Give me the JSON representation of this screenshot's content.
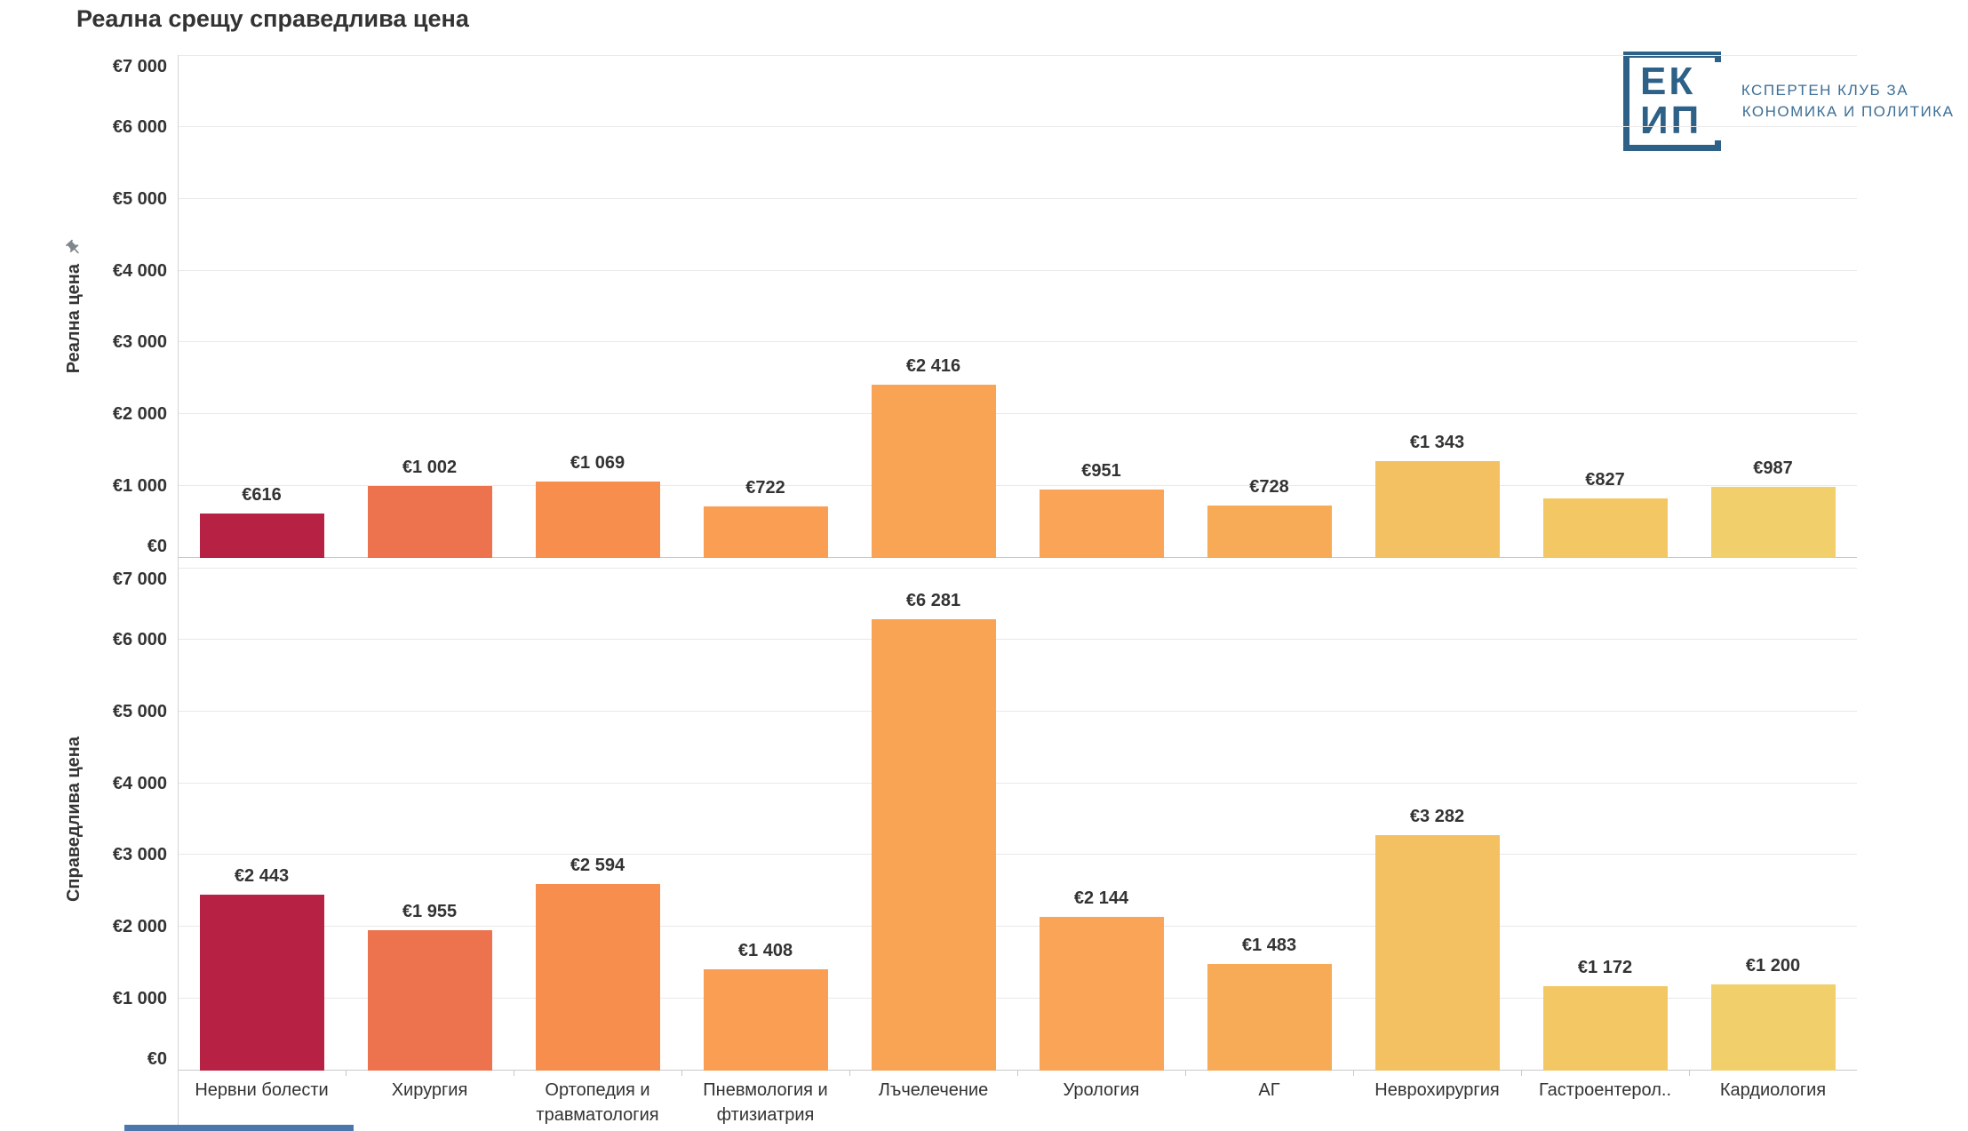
{
  "chart_data": {
    "type": "bar",
    "title": "Реална срещу справедлива цена",
    "categories": [
      "Нервни болести",
      "Хирургия",
      "Ортопедия и\nтравматология",
      "Пневмология и\nфтизиатрия",
      "Лъчелечение",
      "Урология",
      "АГ",
      "Неврохирургия",
      "Гастроентерол..",
      "Кардиология"
    ],
    "series": [
      {
        "name": "Реална цена",
        "values": [
          616,
          1002,
          1069,
          722,
          2416,
          951,
          728,
          1343,
          827,
          987
        ],
        "labels": [
          "€616",
          "€1 002",
          "€1 069",
          "€722",
          "€2 416",
          "€951",
          "€728",
          "€1 343",
          "€827",
          "€987"
        ]
      },
      {
        "name": "Справедлива цена",
        "values": [
          2443,
          1955,
          2594,
          1408,
          6281,
          2144,
          1483,
          3282,
          1172,
          1200
        ],
        "labels": [
          "€2 443",
          "€1 955",
          "€2 594",
          "€1 408",
          "€6 281",
          "€2 144",
          "€1 483",
          "€3 282",
          "€1 172",
          "€1 200"
        ]
      }
    ],
    "bar_colors": [
      "#b72144",
      "#ec734e",
      "#f88e4d",
      "#f99e52",
      "#f9a355",
      "#f9a457",
      "#f7ab57",
      "#f3c161",
      "#f4c765",
      "#f1d06c"
    ],
    "ylim": [
      0,
      7000
    ],
    "ytick_step": 1000,
    "ytick_labels": [
      "€0",
      "€1 000",
      "€2 000",
      "€3 000",
      "€4 000",
      "€5 000",
      "€6 000",
      "€7 000"
    ],
    "grid": true,
    "legend": "none",
    "currency": "EUR"
  },
  "logo": {
    "mark_line1": "ЕК",
    "mark_line2": "ИП",
    "name_line1": "ЕКСПЕРТЕН КЛУБ ЗА",
    "name_line2": "ИКОНОМИКА И ПОЛИТИКА",
    "color": "#2d6187"
  },
  "colors": {
    "text": "#333333",
    "gridline": "#e9e9e9",
    "axis_line": "#c9c9c9",
    "pin": "#7f868c",
    "bottom_strip": "#4b77ad"
  }
}
